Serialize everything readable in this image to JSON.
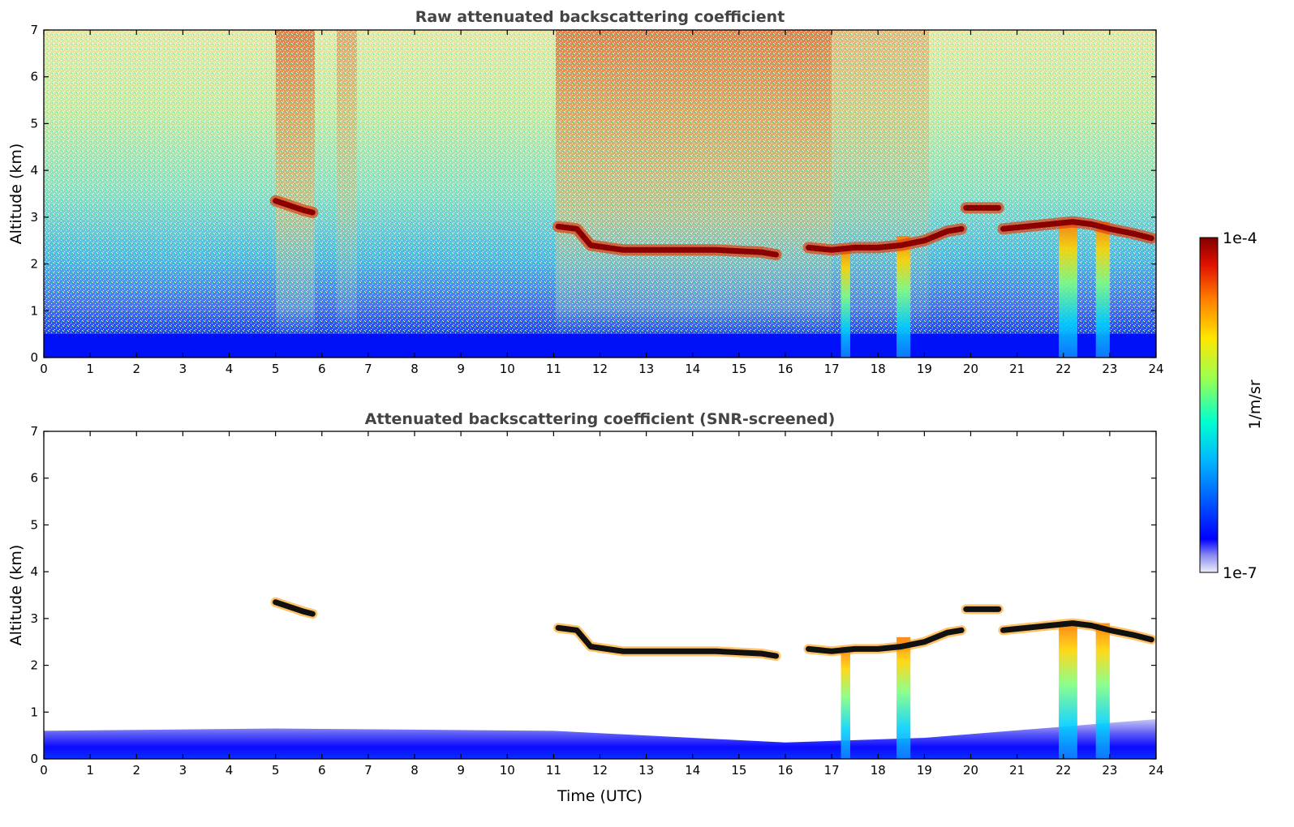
{
  "chart_data": [
    {
      "type": "heatmap",
      "title": "Raw attenuated backscattering coefficient",
      "xlabel": "",
      "ylabel": "Altitude (km)",
      "xlim": [
        0,
        24
      ],
      "ylim": [
        0,
        7
      ],
      "x_ticks": [
        "0",
        "1",
        "2",
        "3",
        "4",
        "5",
        "6",
        "7",
        "8",
        "9",
        "10",
        "11",
        "12",
        "13",
        "14",
        "15",
        "16",
        "17",
        "18",
        "19",
        "20",
        "21",
        "22",
        "23",
        "24"
      ],
      "y_ticks": [
        "0",
        "1",
        "2",
        "3",
        "4",
        "5",
        "6",
        "7"
      ],
      "grid": false,
      "cloud_layers": [
        {
          "x": [
            5.0,
            5.3,
            5.6,
            5.8
          ],
          "y": [
            3.35,
            3.25,
            3.15,
            3.1
          ]
        },
        {
          "x": [
            11.1,
            11.5,
            11.8,
            12.5,
            13.5,
            14.5,
            15.5,
            15.8
          ],
          "y": [
            2.8,
            2.75,
            2.4,
            2.3,
            2.3,
            2.3,
            2.25,
            2.2
          ]
        },
        {
          "x": [
            16.5,
            17.0,
            17.5,
            18.0,
            18.5,
            19.0,
            19.5,
            19.8
          ],
          "y": [
            2.35,
            2.3,
            2.35,
            2.35,
            2.4,
            2.5,
            2.7,
            2.75
          ]
        },
        {
          "x": [
            19.9,
            20.3,
            20.6
          ],
          "y": [
            3.2,
            3.2,
            3.2
          ]
        },
        {
          "x": [
            20.7,
            21.2,
            21.7,
            22.2,
            22.6,
            23.0,
            23.5,
            23.9
          ],
          "y": [
            2.75,
            2.8,
            2.85,
            2.9,
            2.85,
            2.75,
            2.65,
            2.55
          ]
        }
      ],
      "precipitation_columns": [
        {
          "x": [
            17.2,
            17.4
          ],
          "top_km": 2.4
        },
        {
          "x": [
            18.4,
            18.7
          ],
          "top_km": 2.6
        },
        {
          "x": [
            21.9,
            22.3
          ],
          "top_km": 2.9
        },
        {
          "x": [
            22.7,
            23.0
          ],
          "top_km": 2.9
        }
      ]
    },
    {
      "type": "heatmap",
      "title": "Attenuated backscattering coefficient (SNR-screened)",
      "xlabel": "Time (UTC)",
      "ylabel": "Altitude (km)",
      "xlim": [
        0,
        24
      ],
      "ylim": [
        0,
        7
      ],
      "x_ticks": [
        "0",
        "1",
        "2",
        "3",
        "4",
        "5",
        "6",
        "7",
        "8",
        "9",
        "10",
        "11",
        "12",
        "13",
        "14",
        "15",
        "16",
        "17",
        "18",
        "19",
        "20",
        "21",
        "22",
        "23",
        "24"
      ],
      "y_ticks": [
        "0",
        "1",
        "2",
        "3",
        "4",
        "5",
        "6",
        "7"
      ],
      "grid": false,
      "boundary_layer_top_km": [
        {
          "x": 0,
          "y": 0.6
        },
        {
          "x": 5,
          "y": 0.65
        },
        {
          "x": 11,
          "y": 0.6
        },
        {
          "x": 16,
          "y": 0.35
        },
        {
          "x": 19,
          "y": 0.45
        },
        {
          "x": 24,
          "y": 0.85
        }
      ]
    }
  ],
  "colorbar": {
    "label": "1/m/sr",
    "max_label": "1e-4",
    "min_label": "1e-7",
    "vmin": 1e-07,
    "vmax": 0.0001,
    "scale": "log",
    "colormap": "jet",
    "lowest_color": "#e8e8f8"
  }
}
